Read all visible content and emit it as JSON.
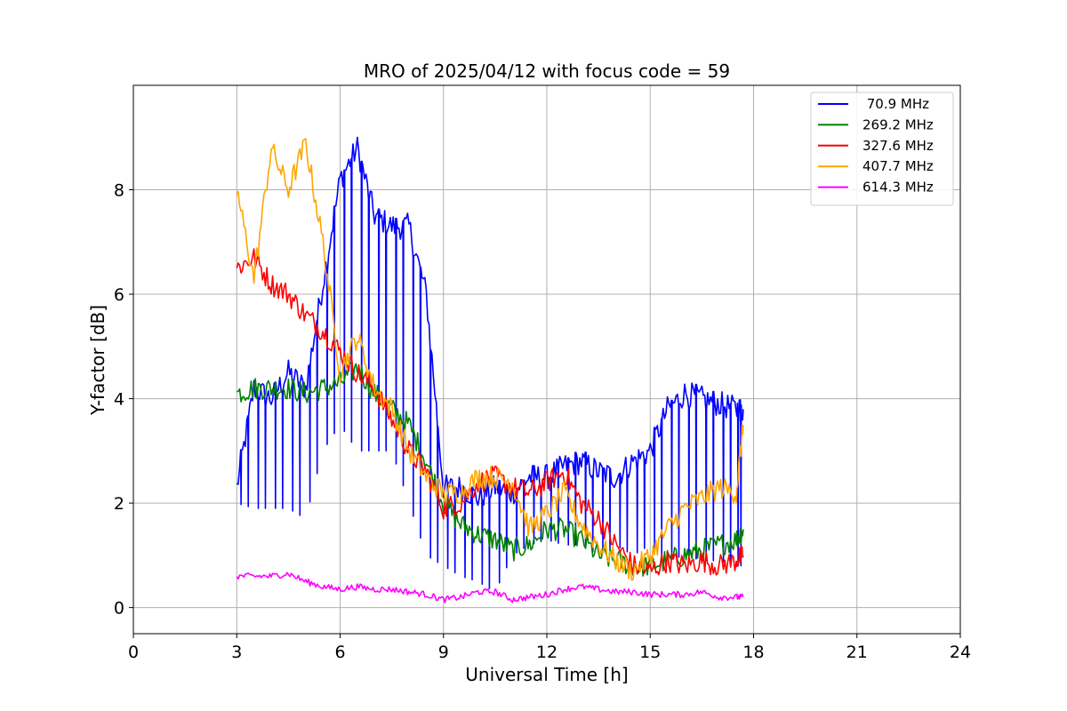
{
  "chart_data": {
    "type": "line",
    "title": "MRO of 2025/04/12 with focus code = 59",
    "xlabel": "Universal Time [h]",
    "ylabel": "Y-factor [dB]",
    "xlim": [
      0,
      24
    ],
    "ylim": [
      -0.5,
      10
    ],
    "xticks": [
      0,
      3,
      6,
      9,
      12,
      15,
      18,
      21,
      24
    ],
    "yticks": [
      0,
      2,
      4,
      6,
      8
    ],
    "grid": true,
    "legend_position": "top-right",
    "series": [
      {
        "name": " 70.9 MHz",
        "color": "#0000ff",
        "x": [
          3.0,
          3.5,
          4.0,
          4.5,
          5.0,
          5.5,
          6.0,
          6.5,
          7.0,
          7.5,
          8.0,
          8.5,
          9.0,
          9.5,
          10.0,
          10.5,
          11.0,
          11.5,
          12.0,
          12.5,
          13.0,
          13.5,
          14.0,
          14.5,
          15.0,
          15.5,
          16.0,
          16.5,
          17.0,
          17.5,
          17.7
        ],
        "y": [
          2.3,
          4.2,
          4.0,
          4.5,
          4.2,
          6.2,
          8.2,
          8.8,
          7.5,
          7.3,
          7.3,
          6.0,
          2.3,
          2.3,
          2.1,
          2.3,
          2.2,
          2.5,
          2.5,
          2.7,
          2.8,
          2.6,
          2.5,
          2.8,
          3.0,
          3.8,
          4.1,
          4.0,
          3.9,
          3.8,
          3.8
        ],
        "minima": [
          2.0,
          1.9,
          1.9,
          1.9,
          1.7,
          3.0,
          3.5,
          3.0,
          3.0,
          3.0,
          2.0,
          1.0,
          0.8,
          0.6,
          0.5,
          0.3,
          1.0,
          1.2,
          1.3,
          1.2,
          1.2,
          1.0,
          1.2,
          1.0,
          1.2,
          0.9,
          1.0,
          0.9,
          0.9,
          0.8,
          0.8
        ]
      },
      {
        "name": "269.2 MHz",
        "color": "#008000",
        "x": [
          3.0,
          3.5,
          4.0,
          4.5,
          5.0,
          5.5,
          6.0,
          6.5,
          7.0,
          7.5,
          8.0,
          8.5,
          9.0,
          9.5,
          10.0,
          10.5,
          11.0,
          11.5,
          12.0,
          12.5,
          13.0,
          13.5,
          14.0,
          14.5,
          15.0,
          15.5,
          16.0,
          16.5,
          17.0,
          17.5,
          17.7
        ],
        "y": [
          4.1,
          4.2,
          4.2,
          4.2,
          4.1,
          4.2,
          4.3,
          4.6,
          4.1,
          3.8,
          3.5,
          2.8,
          2.0,
          1.6,
          1.4,
          1.3,
          1.1,
          1.2,
          1.5,
          1.5,
          1.3,
          1.0,
          0.9,
          0.8,
          0.8,
          0.9,
          1.0,
          1.1,
          1.2,
          1.3,
          1.5
        ]
      },
      {
        "name": "327.6 MHz",
        "color": "#ff0000",
        "x": [
          3.0,
          3.5,
          4.0,
          4.5,
          5.0,
          5.5,
          6.0,
          6.5,
          7.0,
          7.5,
          8.0,
          8.5,
          9.0,
          9.5,
          10.0,
          10.5,
          11.0,
          11.5,
          12.0,
          12.5,
          13.0,
          13.5,
          14.0,
          14.5,
          15.0,
          15.5,
          16.0,
          16.5,
          17.0,
          17.5,
          17.7
        ],
        "y": [
          6.5,
          6.7,
          6.2,
          6.0,
          5.6,
          5.3,
          4.9,
          4.5,
          4.2,
          3.6,
          3.0,
          2.6,
          1.9,
          2.0,
          2.4,
          2.5,
          2.3,
          2.2,
          2.4,
          2.6,
          2.0,
          1.7,
          1.2,
          0.8,
          0.7,
          0.9,
          0.8,
          0.9,
          0.8,
          0.9,
          1.0
        ]
      },
      {
        "name": "407.7 MHz",
        "color": "#ffa500",
        "x": [
          3.0,
          3.5,
          4.0,
          4.5,
          5.0,
          5.5,
          6.0,
          6.5,
          7.0,
          7.5,
          8.0,
          8.5,
          9.0,
          9.5,
          10.0,
          10.5,
          11.0,
          11.5,
          12.0,
          12.5,
          13.0,
          13.5,
          14.0,
          14.5,
          15.0,
          15.5,
          16.0,
          16.5,
          17.0,
          17.5,
          17.7
        ],
        "y": [
          8.0,
          6.3,
          8.8,
          8.0,
          8.9,
          7.0,
          4.5,
          5.2,
          4.2,
          3.8,
          3.0,
          2.5,
          2.2,
          2.2,
          2.5,
          2.5,
          2.4,
          1.5,
          1.8,
          2.2,
          1.6,
          1.2,
          0.9,
          0.7,
          1.0,
          1.5,
          1.9,
          2.1,
          2.3,
          2.2,
          3.5
        ]
      },
      {
        "name": "614.3 MHz",
        "color": "#ff00ff",
        "x": [
          3.0,
          3.5,
          4.0,
          4.5,
          5.0,
          5.5,
          6.0,
          6.5,
          7.0,
          7.5,
          8.0,
          8.5,
          9.0,
          9.5,
          10.0,
          10.5,
          11.0,
          11.5,
          12.0,
          12.5,
          13.0,
          13.5,
          14.0,
          14.5,
          15.0,
          15.5,
          16.0,
          16.5,
          17.0,
          17.5,
          17.7
        ],
        "y": [
          0.6,
          0.6,
          0.6,
          0.65,
          0.5,
          0.4,
          0.35,
          0.4,
          0.35,
          0.35,
          0.3,
          0.25,
          0.15,
          0.2,
          0.3,
          0.3,
          0.15,
          0.2,
          0.25,
          0.35,
          0.4,
          0.35,
          0.3,
          0.3,
          0.25,
          0.25,
          0.25,
          0.3,
          0.2,
          0.2,
          0.2
        ]
      }
    ]
  }
}
